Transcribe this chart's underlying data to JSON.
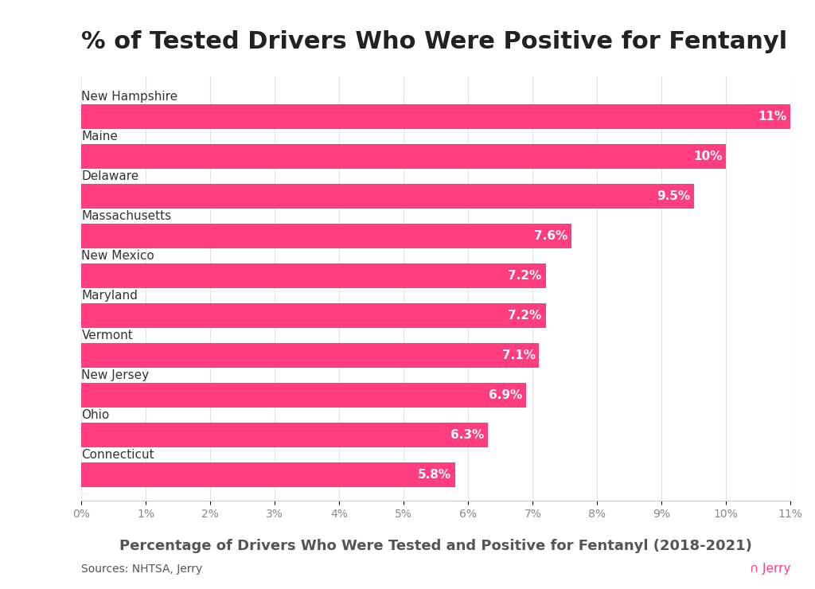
{
  "title": "% of Tested Drivers Who Were Positive for Fentanyl",
  "xlabel": "Percentage of Drivers Who Were Tested and Positive for Fentanyl (2018-2021)",
  "categories": [
    "New Hampshire",
    "Maine",
    "Delaware",
    "Massachusetts",
    "New Mexico",
    "Maryland",
    "Vermont",
    "New Jersey",
    "Ohio",
    "Connecticut"
  ],
  "values": [
    11.0,
    10.0,
    9.5,
    7.6,
    7.2,
    7.2,
    7.1,
    6.9,
    6.3,
    5.8
  ],
  "labels": [
    "11%",
    "10%",
    "9.5%",
    "7.6%",
    "7.2%",
    "7.2%",
    "7.1%",
    "6.9%",
    "6.3%",
    "5.8%"
  ],
  "bar_color": "#FF3D7F",
  "text_color_inside": "#FFFFFF",
  "title_color": "#222222",
  "xlabel_color": "#555555",
  "tick_label_color": "#888888",
  "category_label_color": "#333333",
  "background_color": "#FFFFFF",
  "source_text": "Sources: NHTSA, Jerry",
  "jerry_text": "π Jerry",
  "xlim": [
    0,
    11
  ],
  "xticks": [
    0,
    1,
    2,
    3,
    4,
    5,
    6,
    7,
    8,
    9,
    10,
    11
  ],
  "xtick_labels": [
    "0%",
    "1%",
    "2%",
    "3%",
    "4%",
    "5%",
    "6%",
    "7%",
    "8%",
    "9%",
    "10%",
    "11%"
  ],
  "title_fontsize": 22,
  "xlabel_fontsize": 13,
  "category_fontsize": 11,
  "bar_label_fontsize": 11,
  "source_fontsize": 10,
  "bar_height": 0.62
}
